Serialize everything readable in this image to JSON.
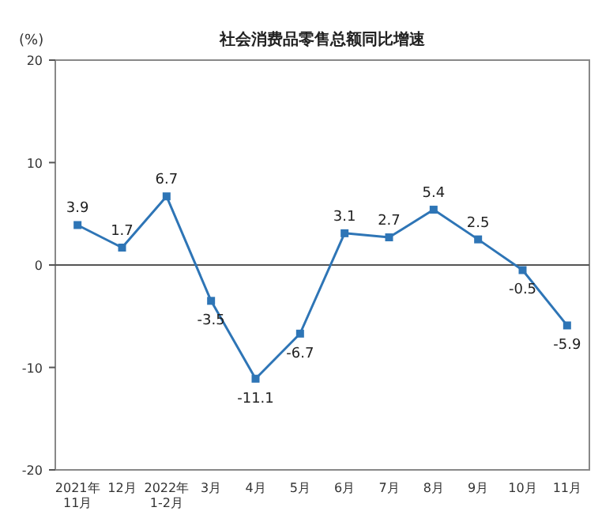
{
  "chart_data": {
    "type": "line",
    "title": "社会消费品零售总额同比增速",
    "ylabel": "(%)",
    "categories": [
      "2021年\n11月",
      "12月",
      "2022年\n1-2月",
      "3月",
      "4月",
      "5月",
      "6月",
      "7月",
      "8月",
      "9月",
      "10月",
      "11月"
    ],
    "values": [
      3.9,
      1.7,
      6.7,
      -3.5,
      -11.1,
      -6.7,
      3.1,
      2.7,
      5.4,
      2.5,
      -0.5,
      -5.9
    ],
    "color": "#2e75b6",
    "marker": "square",
    "data_labels": true,
    "ylim": [
      -20,
      20
    ],
    "yticks": [
      -20,
      -10,
      0,
      10,
      20
    ]
  }
}
